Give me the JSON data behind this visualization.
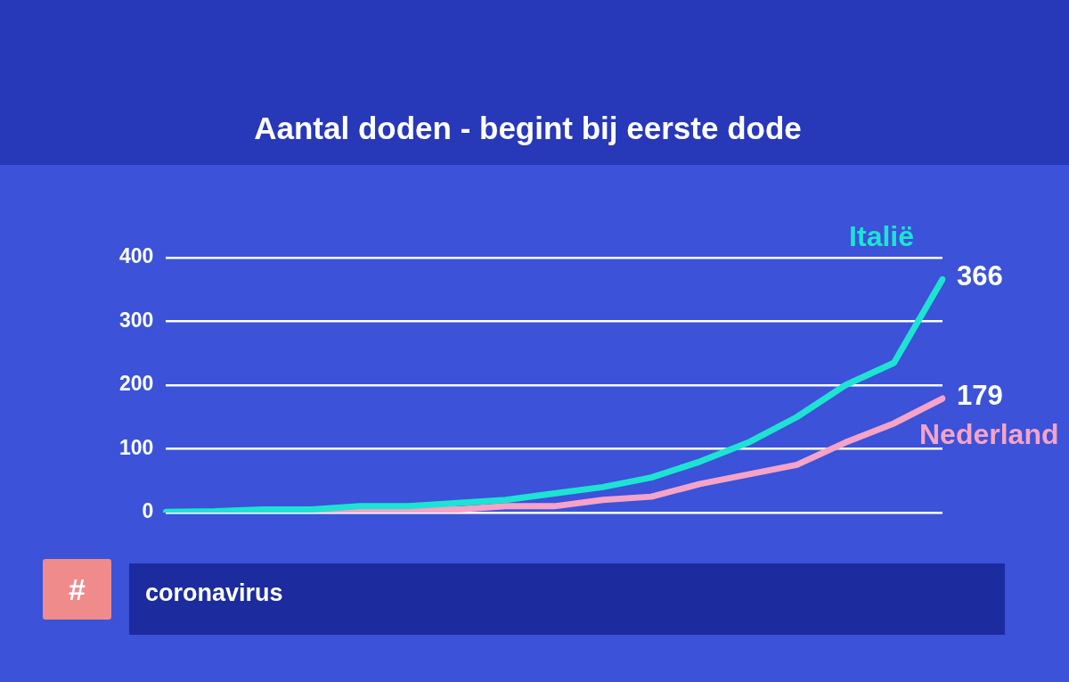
{
  "chart_data": {
    "type": "line",
    "title": "Aantal doden - begint bij eerste dode",
    "categories": [
      null,
      null,
      null,
      null,
      null,
      null,
      null,
      null,
      null,
      null,
      null,
      null,
      null,
      null,
      null,
      null,
      null
    ],
    "series": [
      {
        "name": "Italië",
        "color": "#1ee3d3",
        "values": [
          1,
          2,
          5,
          5,
          10,
          10,
          15,
          20,
          30,
          40,
          55,
          80,
          110,
          150,
          200,
          235,
          366
        ],
        "value_labels": [
          null,
          null,
          null,
          null,
          null,
          null,
          null,
          null,
          null,
          null,
          null,
          null,
          null,
          null,
          null,
          null,
          "366"
        ]
      },
      {
        "name": "Nederland",
        "color": "#f5a3c7",
        "values": [
          null,
          null,
          5,
          5,
          5,
          5,
          5,
          10,
          10,
          20,
          25,
          45,
          60,
          75,
          110,
          140,
          179
        ],
        "value_labels": [
          null,
          null,
          null,
          null,
          null,
          null,
          null,
          null,
          null,
          null,
          null,
          null,
          null,
          null,
          null,
          null,
          "179"
        ]
      }
    ],
    "ylim": [
      0,
      400
    ],
    "yticks": [
      0,
      100,
      200,
      300,
      400
    ],
    "grid": "y",
    "tick_labels": "y",
    "annotations": [
      "#",
      "coronavirus"
    ]
  }
}
